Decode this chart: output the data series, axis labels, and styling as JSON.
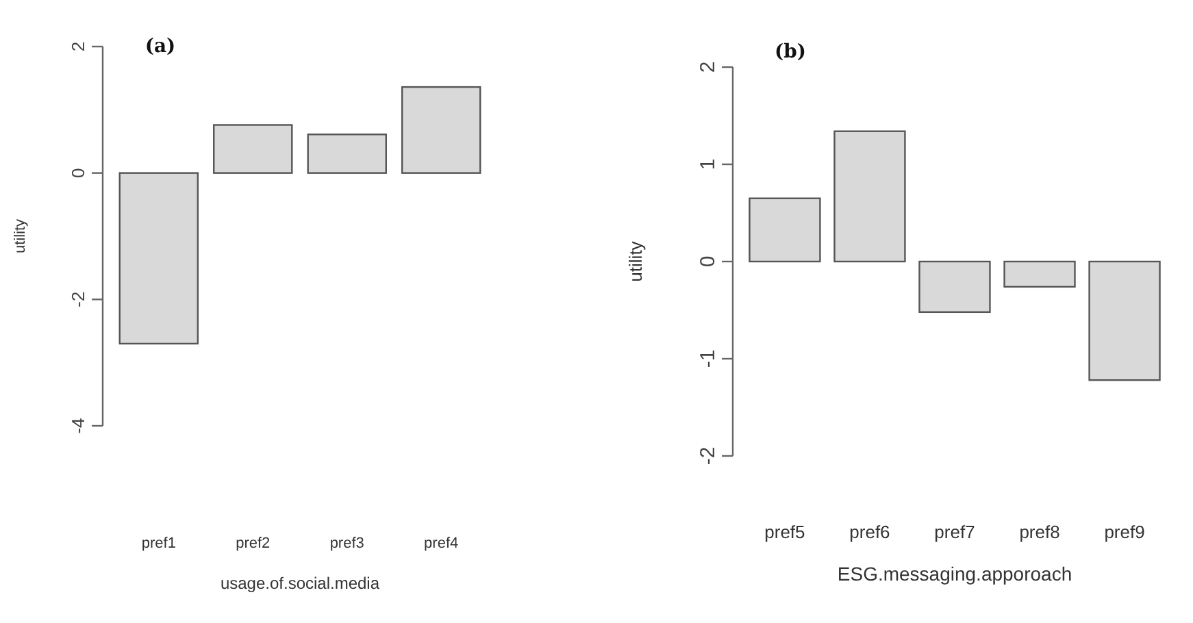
{
  "chart_data": [
    {
      "type": "bar",
      "title": "(a)",
      "xlabel": "usage.of.social.media",
      "ylabel": "utility",
      "categories": [
        "pref1",
        "pref2",
        "pref3",
        "pref4"
      ],
      "values": [
        -2.7,
        0.76,
        0.61,
        1.36
      ],
      "color": "#d9d9d9",
      "ylim": [
        -4,
        2
      ],
      "yticks": [
        -4,
        -2,
        0,
        2
      ]
    },
    {
      "type": "bar",
      "title": "(b)",
      "xlabel": "ESG.messaging.apporoach",
      "ylabel": "utility",
      "categories": [
        "pref5",
        "pref6",
        "pref7",
        "pref8",
        "pref9"
      ],
      "values": [
        0.65,
        1.34,
        -0.52,
        -0.26,
        -1.22
      ],
      "color": "#d9d9d9",
      "ylim": [
        -2,
        2
      ],
      "yticks": [
        -2,
        -1,
        0,
        1,
        2
      ]
    }
  ]
}
